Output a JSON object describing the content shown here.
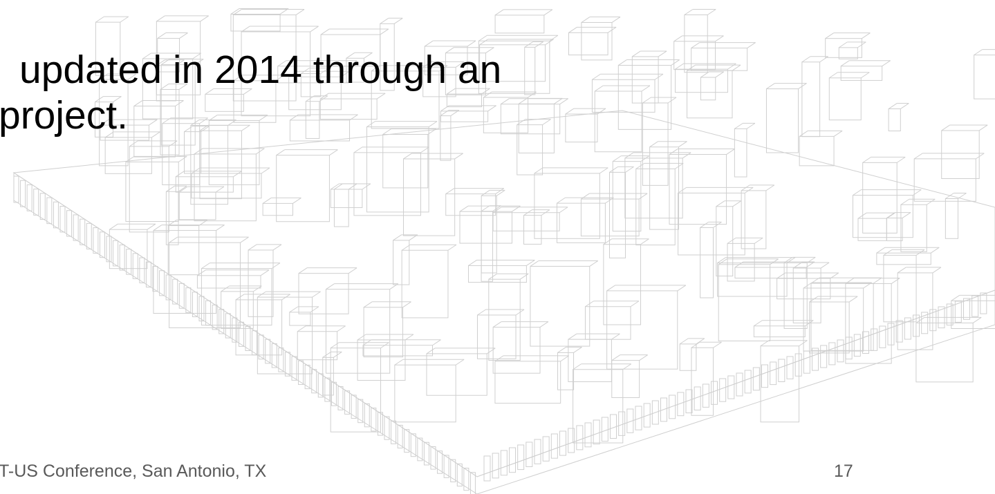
{
  "slide": {
    "body_lines": [
      "updated in 2014 through an",
      "project."
    ],
    "footer": "T-US Conference, San Antonio, TX",
    "page_number": "17"
  }
}
